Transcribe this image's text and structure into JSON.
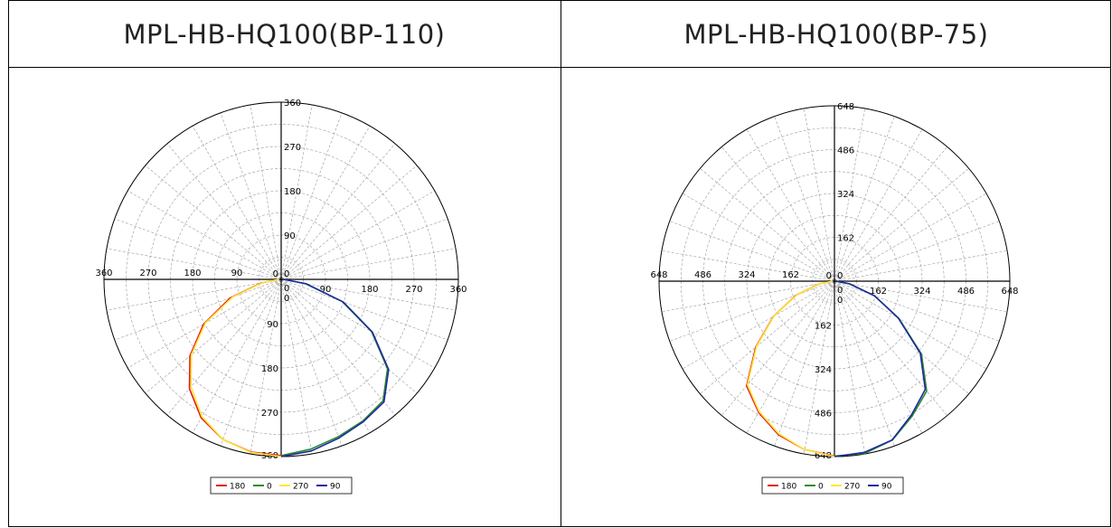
{
  "table": {
    "left_title": "MPL-HB-HQ100(BP-110)",
    "right_title": "MPL-HB-HQ100(BP-75)"
  },
  "chart_data": [
    {
      "type": "polar",
      "title": "MPL-HB-HQ100(BP-110)",
      "rmax": 360,
      "ticks": [
        "0",
        "90",
        "180",
        "270",
        "360"
      ],
      "tick_values": [
        0,
        90,
        180,
        270,
        360
      ],
      "grid": true,
      "legend_position": "bottom",
      "angles_deg": [
        0,
        10,
        20,
        30,
        40,
        50,
        60,
        70,
        80,
        90
      ],
      "series": [
        {
          "name": "180",
          "color": "#e41a1c",
          "side": "left",
          "values": [
            358,
            356,
            346,
            325,
            290,
            242,
            182,
            110,
            40,
            4
          ]
        },
        {
          "name": "0",
          "color": "#2e8b2e",
          "side": "right",
          "values": [
            358,
            350,
            340,
            332,
            322,
            282,
            212,
            132,
            50,
            5
          ]
        },
        {
          "name": "270",
          "color": "#ffe733",
          "side": "left",
          "values": [
            360,
            357,
            346,
            322,
            285,
            238,
            178,
            105,
            38,
            4
          ]
        },
        {
          "name": "90",
          "color": "#1c2aa0",
          "side": "right",
          "values": [
            360,
            354,
            343,
            334,
            325,
            285,
            214,
            134,
            52,
            5
          ]
        }
      ]
    },
    {
      "type": "polar",
      "title": "MPL-HB-HQ100(BP-75)",
      "rmax": 648,
      "ticks": [
        "0",
        "162",
        "324",
        "486",
        "648"
      ],
      "tick_values": [
        0,
        162,
        324,
        486,
        648
      ],
      "grid": true,
      "legend_position": "bottom",
      "angles_deg": [
        0,
        10,
        20,
        30,
        40,
        50,
        60,
        70,
        80,
        90
      ],
      "series": [
        {
          "name": "180",
          "color": "#e41a1c",
          "side": "left",
          "values": [
            646,
            632,
            604,
            560,
            505,
            380,
            260,
            150,
            55,
            6
          ]
        },
        {
          "name": "0",
          "color": "#2e8b2e",
          "side": "right",
          "values": [
            646,
            646,
            625,
            575,
            530,
            420,
            275,
            158,
            58,
            6
          ]
        },
        {
          "name": "270",
          "color": "#ffe733",
          "side": "left",
          "values": [
            648,
            632,
            600,
            556,
            500,
            376,
            258,
            148,
            54,
            6
          ]
        },
        {
          "name": "90",
          "color": "#1c2aa0",
          "side": "right",
          "values": [
            648,
            642,
            624,
            570,
            522,
            414,
            272,
            156,
            56,
            6
          ]
        }
      ]
    }
  ]
}
